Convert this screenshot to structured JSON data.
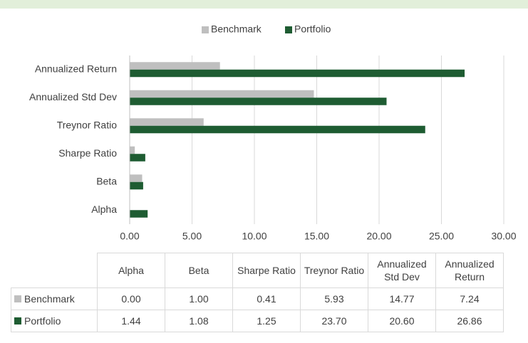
{
  "chart_data": {
    "type": "bar",
    "orientation": "horizontal",
    "categories": [
      "Alpha",
      "Beta",
      "Sharpe Ratio",
      "Treynor Ratio",
      "Annualized Std Dev",
      "Annualized Return"
    ],
    "series": [
      {
        "name": "Benchmark",
        "color": "#bfbfbf",
        "values": [
          0,
          1,
          0.41,
          5.93,
          14.77,
          7.24
        ],
        "value_labels": [
          "0.00",
          "1.00",
          "0.41",
          "5.93",
          "14.77",
          "7.24"
        ]
      },
      {
        "name": "Portfolio",
        "color": "#1e5c32",
        "values": [
          1.44,
          1.08,
          1.25,
          23.7,
          20.6,
          26.86
        ],
        "value_labels": [
          "1.44",
          "1.08",
          "1.25",
          "23.70",
          "20.60",
          "26.86"
        ]
      }
    ],
    "xlim": [
      0,
      30
    ],
    "xticks": [
      {
        "value": 0,
        "label": "0.00"
      },
      {
        "value": 5,
        "label": "5.00"
      },
      {
        "value": 10,
        "label": "10.00"
      },
      {
        "value": 15,
        "label": "15.00"
      },
      {
        "value": 20,
        "label": "20.00"
      },
      {
        "value": 25,
        "label": "25.00"
      },
      {
        "value": 30,
        "label": "30.00"
      }
    ],
    "grid": true,
    "legend": "top"
  }
}
